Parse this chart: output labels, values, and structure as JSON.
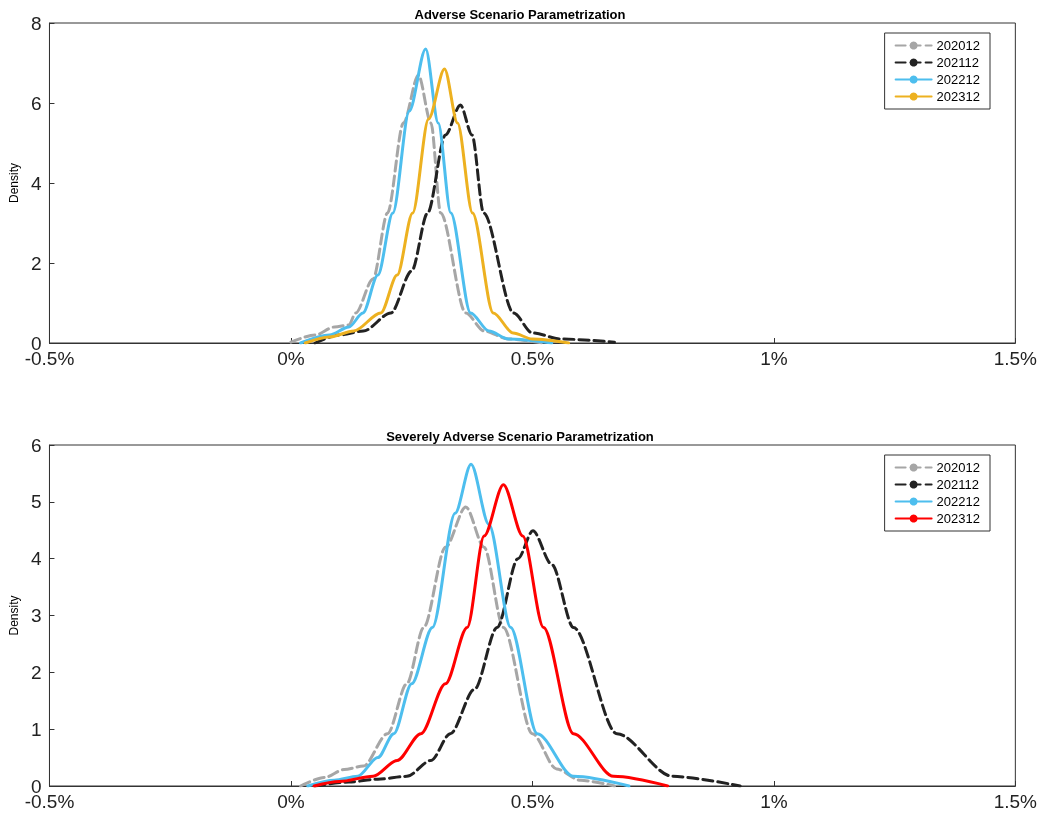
{
  "chart_data": [
    {
      "type": "line",
      "title": "Adverse Scenario Parametrization",
      "ylabel": "Density",
      "xlim": [
        -0.5,
        1.5
      ],
      "ylim": [
        0,
        8
      ],
      "xticks": [
        {
          "value": -0.5,
          "label": "-0.5%"
        },
        {
          "value": 0,
          "label": "0%"
        },
        {
          "value": 0.5,
          "label": "0.5%"
        },
        {
          "value": 1,
          "label": "1%"
        },
        {
          "value": 1.5,
          "label": "1.5%"
        }
      ],
      "yticks": [
        0,
        2,
        4,
        6,
        8
      ],
      "grid": false,
      "legend": "top right",
      "marker": "none",
      "series": [
        {
          "name": "202012",
          "color": "#a6a6a6",
          "line_style": "dashed",
          "x": [
            0,
            0.05,
            0.09,
            0.12,
            0.134,
            0.17,
            0.2,
            0.233,
            0.264,
            0.29,
            0.31,
            0.362,
            0.4,
            0.45,
            0.52
          ],
          "values": [
            0.02,
            0.2,
            0.4,
            0.45,
            0.75,
            1.6,
            3.25,
            5.5,
            6.7,
            5.5,
            3.25,
            0.75,
            0.3,
            0.1,
            0
          ]
        },
        {
          "name": "202112",
          "color": "#222222",
          "line_style": "dashed",
          "x": [
            0.05,
            0.1,
            0.15,
            0.207,
            0.25,
            0.283,
            0.32,
            0.351,
            0.375,
            0.399,
            0.461,
            0.5,
            0.56,
            0.67
          ],
          "values": [
            0,
            0.2,
            0.3,
            0.75,
            1.8,
            3.25,
            5.2,
            5.95,
            5.2,
            3.25,
            0.75,
            0.25,
            0.1,
            0.02
          ]
        },
        {
          "name": "202212",
          "color": "#4dbeee",
          "line_style": "solid",
          "x": [
            0.02,
            0.08,
            0.12,
            0.149,
            0.18,
            0.211,
            0.245,
            0.279,
            0.305,
            0.331,
            0.372,
            0.41,
            0.45,
            0.54
          ],
          "values": [
            0,
            0.2,
            0.4,
            0.75,
            1.7,
            3.25,
            5.8,
            7.35,
            5.5,
            3.25,
            0.75,
            0.3,
            0.1,
            0
          ]
        },
        {
          "name": "202312",
          "color": "#edb120",
          "line_style": "solid",
          "x": [
            0.03,
            0.08,
            0.13,
            0.186,
            0.22,
            0.252,
            0.285,
            0.318,
            0.345,
            0.376,
            0.419,
            0.46,
            0.5,
            0.575
          ],
          "values": [
            0,
            0.15,
            0.3,
            0.75,
            1.7,
            3.25,
            5.6,
            6.85,
            5.5,
            3.25,
            0.75,
            0.25,
            0.1,
            0
          ]
        }
      ]
    },
    {
      "type": "line",
      "title": "Severely Adverse Scenario Parametrization",
      "ylabel": "Density",
      "xlim": [
        -0.5,
        1.5
      ],
      "ylim": [
        0,
        6
      ],
      "xticks": [
        {
          "value": -0.5,
          "label": "-0.5%"
        },
        {
          "value": 0,
          "label": "0%"
        },
        {
          "value": 0.5,
          "label": "0.5%"
        },
        {
          "value": 1,
          "label": "1%"
        },
        {
          "value": 1.5,
          "label": "1.5%"
        }
      ],
      "yticks": [
        0,
        1,
        2,
        3,
        4,
        5,
        6
      ],
      "grid": false,
      "legend": "top right",
      "marker": "none",
      "series": [
        {
          "name": "202012",
          "color": "#a6a6a6",
          "line_style": "dashed",
          "x": [
            0.02,
            0.07,
            0.11,
            0.15,
            0.2,
            0.24,
            0.275,
            0.32,
            0.362,
            0.4,
            0.44,
            0.5,
            0.55,
            0.6,
            0.67
          ],
          "values": [
            0,
            0.15,
            0.29,
            0.35,
            0.92,
            1.8,
            2.79,
            4.2,
            4.91,
            4.2,
            2.79,
            0.92,
            0.3,
            0.1,
            0
          ]
        },
        {
          "name": "202112",
          "color": "#222222",
          "line_style": "dashed",
          "x": [
            0.05,
            0.12,
            0.18,
            0.24,
            0.29,
            0.33,
            0.38,
            0.427,
            0.47,
            0.501,
            0.54,
            0.585,
            0.675,
            0.79,
            0.93
          ],
          "values": [
            0,
            0.07,
            0.12,
            0.17,
            0.45,
            0.92,
            1.7,
            2.79,
            4.0,
            4.49,
            3.9,
            2.79,
            0.92,
            0.17,
            0
          ]
        },
        {
          "name": "202212",
          "color": "#4dbeee",
          "line_style": "solid",
          "x": [
            0.035,
            0.09,
            0.138,
            0.18,
            0.213,
            0.25,
            0.293,
            0.34,
            0.373,
            0.41,
            0.455,
            0.51,
            0.585,
            0.7
          ],
          "values": [
            0,
            0.1,
            0.17,
            0.5,
            0.92,
            1.8,
            2.79,
            4.8,
            5.66,
            4.6,
            2.79,
            0.92,
            0.17,
            0
          ]
        },
        {
          "name": "202312",
          "color": "#ff0000",
          "line_style": "solid",
          "x": [
            0.048,
            0.1,
            0.17,
            0.22,
            0.269,
            0.32,
            0.365,
            0.4,
            0.44,
            0.48,
            0.523,
            0.585,
            0.668,
            0.78
          ],
          "values": [
            0,
            0.08,
            0.17,
            0.45,
            0.92,
            1.8,
            2.79,
            4.4,
            5.3,
            4.4,
            2.79,
            0.92,
            0.17,
            0
          ]
        }
      ]
    }
  ]
}
